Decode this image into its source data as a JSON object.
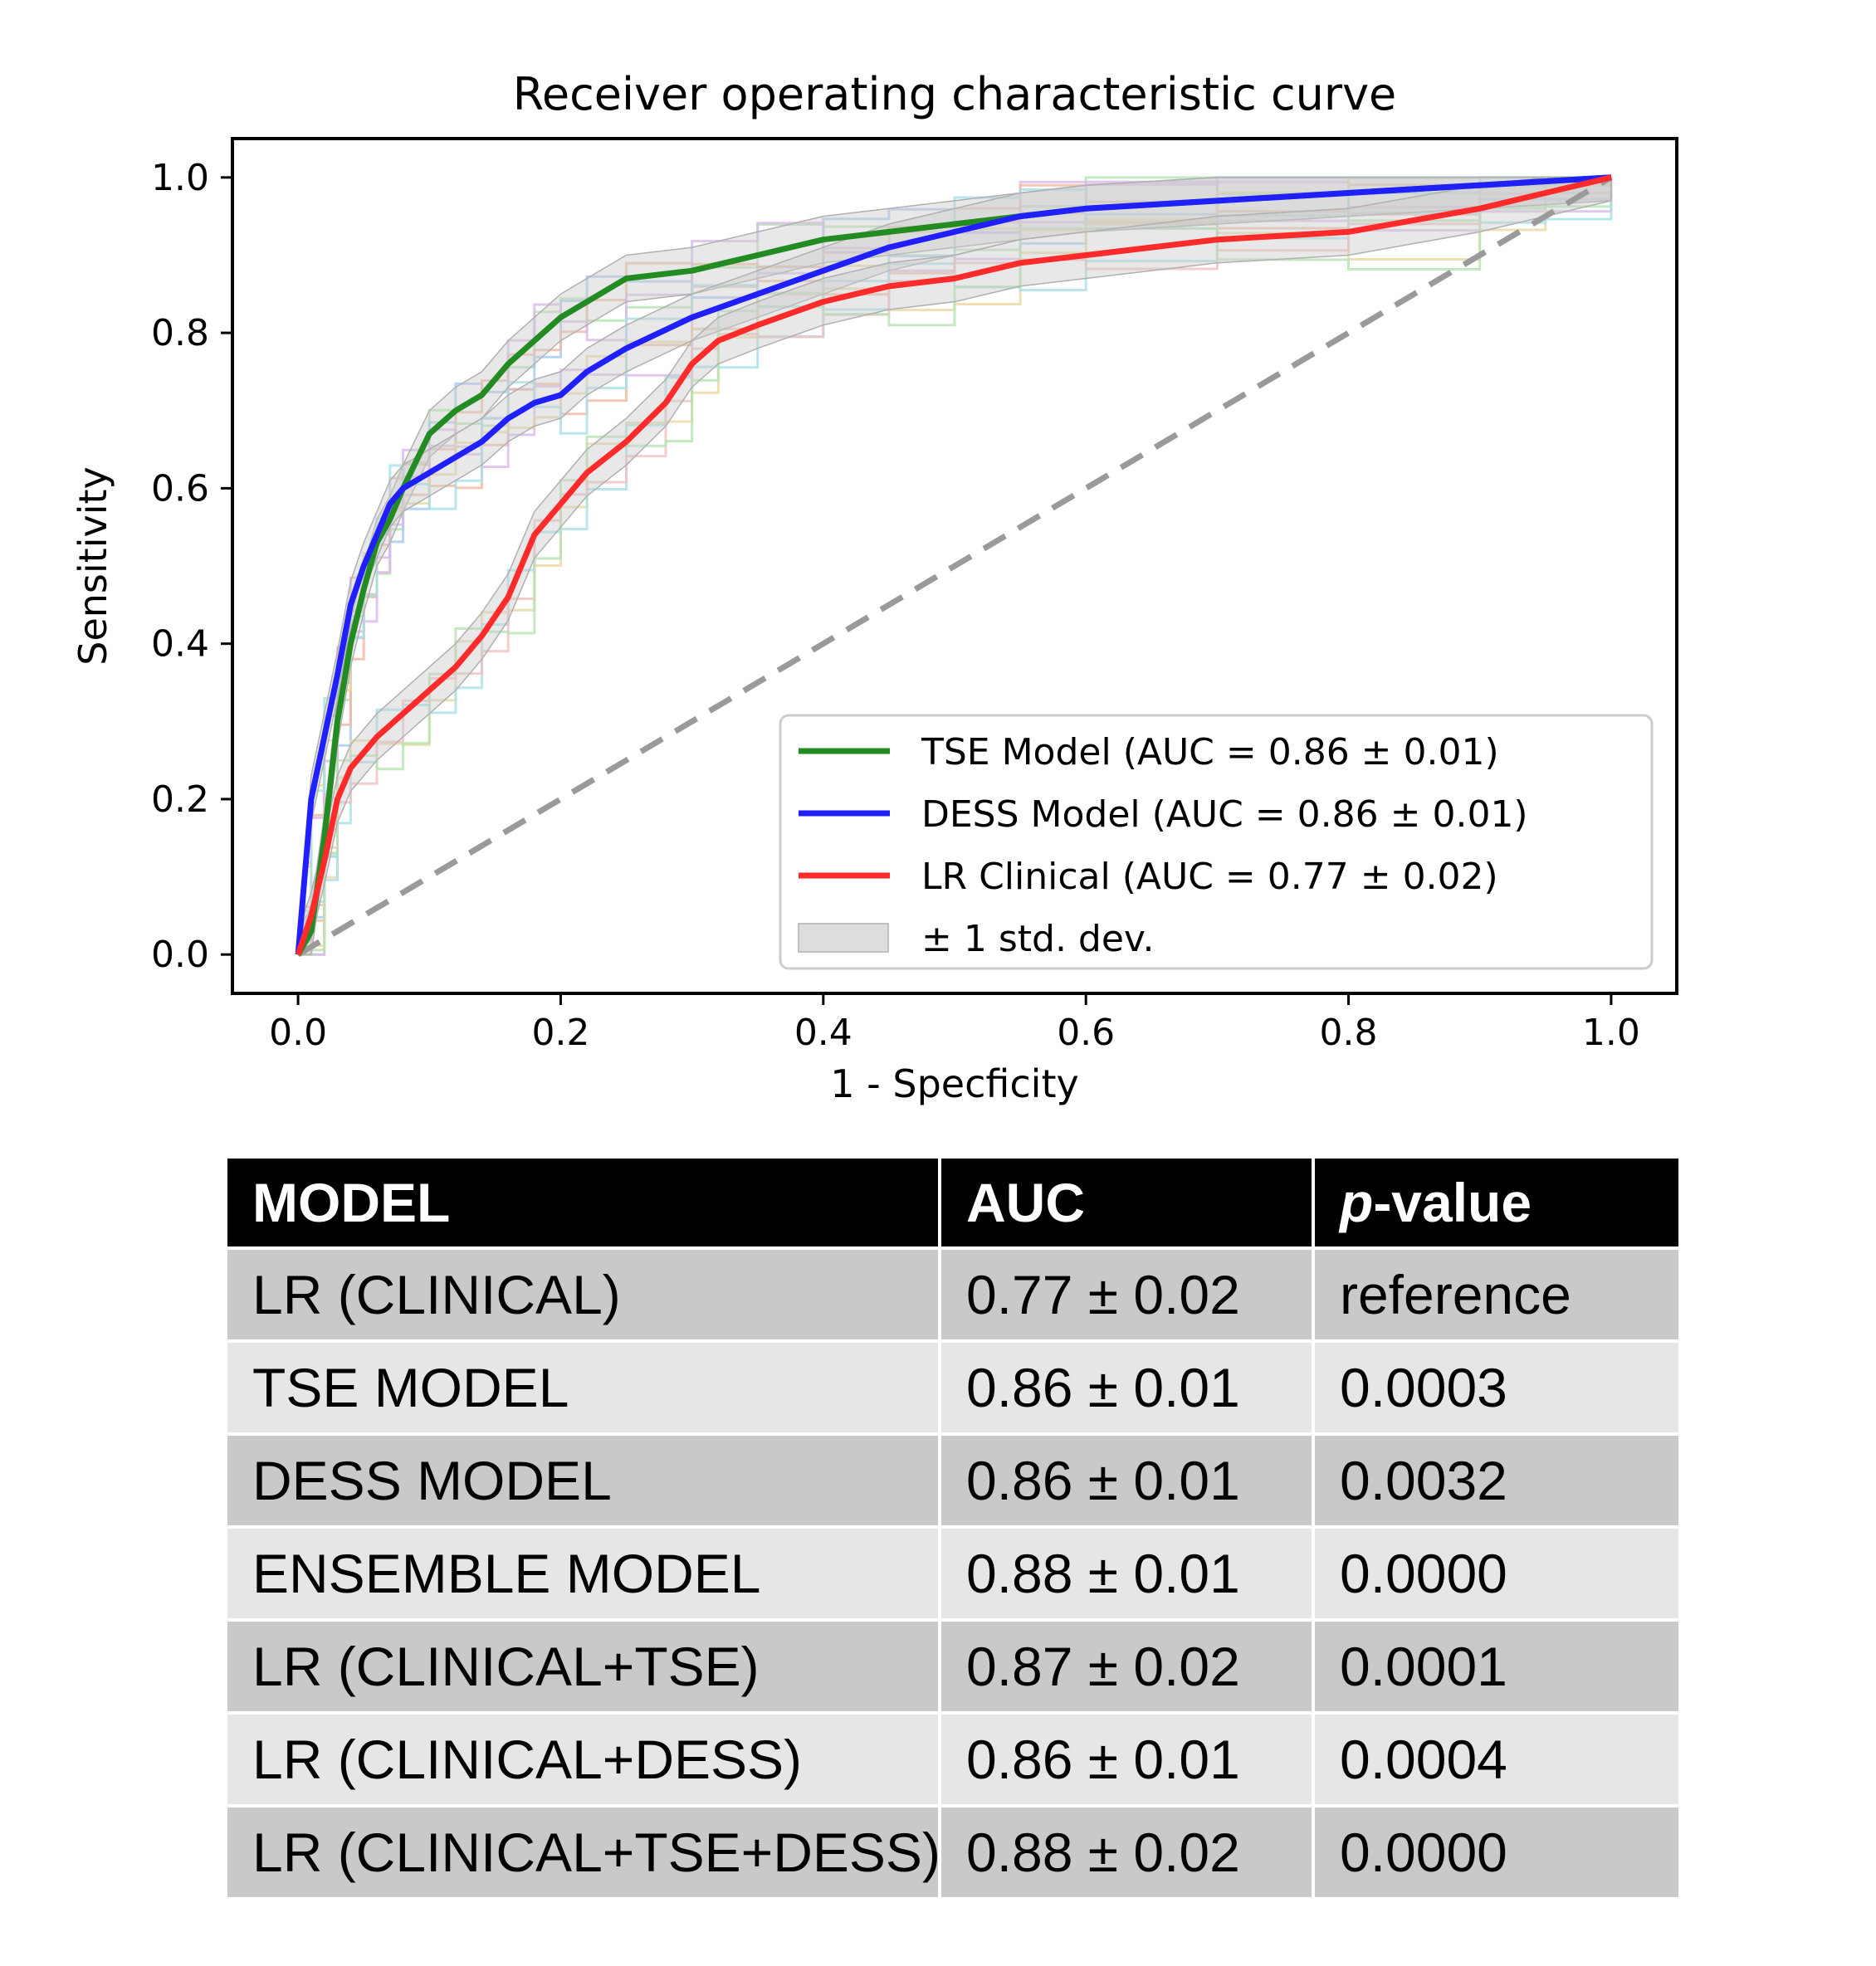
{
  "chart_data": {
    "type": "line",
    "title": "Receiver operating characteristic curve",
    "xlabel": "1 - Specficity",
    "ylabel": "Sensitivity",
    "xlim": [
      -0.05,
      1.05
    ],
    "ylim": [
      -0.05,
      1.05
    ],
    "xticks": [
      "0.0",
      "0.2",
      "0.4",
      "0.6",
      "0.8",
      "1.0"
    ],
    "yticks": [
      "0.0",
      "0.2",
      "0.4",
      "0.6",
      "0.8",
      "1.0"
    ],
    "grid": false,
    "legend_position": "lower-right",
    "series": [
      {
        "name": "TSE Model (AUC = 0.86 ± 0.01)",
        "color": "#228b22",
        "x": [
          0,
          0.01,
          0.02,
          0.03,
          0.04,
          0.05,
          0.06,
          0.07,
          0.08,
          0.1,
          0.12,
          0.14,
          0.16,
          0.18,
          0.2,
          0.22,
          0.25,
          0.3,
          0.35,
          0.4,
          0.45,
          0.5,
          0.55,
          0.6,
          0.7,
          0.8,
          0.9,
          1.0
        ],
        "y": [
          0,
          0.03,
          0.15,
          0.3,
          0.4,
          0.47,
          0.53,
          0.56,
          0.6,
          0.67,
          0.7,
          0.72,
          0.76,
          0.79,
          0.82,
          0.84,
          0.87,
          0.88,
          0.9,
          0.92,
          0.93,
          0.94,
          0.95,
          0.96,
          0.97,
          0.98,
          0.99,
          1.0
        ]
      },
      {
        "name": "DESS Model (AUC = 0.86 ± 0.01)",
        "color": "#1f1fff",
        "x": [
          0,
          0.005,
          0.01,
          0.02,
          0.03,
          0.04,
          0.05,
          0.06,
          0.07,
          0.08,
          0.1,
          0.12,
          0.14,
          0.16,
          0.18,
          0.2,
          0.22,
          0.25,
          0.3,
          0.35,
          0.4,
          0.45,
          0.5,
          0.55,
          0.6,
          0.7,
          0.8,
          0.9,
          1.0
        ],
        "y": [
          0,
          0.1,
          0.2,
          0.28,
          0.36,
          0.45,
          0.5,
          0.54,
          0.58,
          0.6,
          0.62,
          0.64,
          0.66,
          0.69,
          0.71,
          0.72,
          0.75,
          0.78,
          0.82,
          0.85,
          0.88,
          0.91,
          0.93,
          0.95,
          0.96,
          0.97,
          0.98,
          0.99,
          1.0
        ]
      },
      {
        "name": "LR Clinical (AUC = 0.77 ± 0.02)",
        "color": "#ff2a2a",
        "x": [
          0,
          0.01,
          0.02,
          0.03,
          0.04,
          0.06,
          0.08,
          0.1,
          0.12,
          0.14,
          0.16,
          0.18,
          0.2,
          0.22,
          0.25,
          0.28,
          0.3,
          0.32,
          0.35,
          0.4,
          0.45,
          0.5,
          0.55,
          0.6,
          0.7,
          0.8,
          0.9,
          0.95,
          1.0
        ],
        "y": [
          0,
          0.05,
          0.12,
          0.2,
          0.24,
          0.28,
          0.31,
          0.34,
          0.37,
          0.41,
          0.46,
          0.54,
          0.58,
          0.62,
          0.66,
          0.71,
          0.76,
          0.79,
          0.81,
          0.84,
          0.86,
          0.87,
          0.89,
          0.9,
          0.92,
          0.93,
          0.96,
          0.98,
          1.0
        ]
      }
    ],
    "reference_line": {
      "x": [
        0,
        1
      ],
      "y": [
        0,
        1
      ],
      "color": "#9a9a9a",
      "style": "dashed"
    },
    "legend_entries": [
      {
        "label": "TSE Model (AUC = 0.86 ± 0.01)",
        "color": "#228b22",
        "kind": "line"
      },
      {
        "label": "DESS Model (AUC = 0.86 ± 0.01)",
        "color": "#1f1fff",
        "kind": "line"
      },
      {
        "label": "LR Clinical (AUC = 0.77 ± 0.02)",
        "color": "#ff2a2a",
        "kind": "line"
      },
      {
        "label": "± 1 std. dev.",
        "color": "#dddddd",
        "kind": "band"
      }
    ],
    "std_band_half_width": 0.03,
    "fold_line_colors": [
      "#b5e3b0",
      "#a8c8f0",
      "#f0b8a0",
      "#d9b8e8",
      "#e8d8a0",
      "#a8e0e8",
      "#f0c0c0"
    ]
  },
  "table": {
    "headers": [
      "MODEL",
      "AUC",
      "p-value"
    ],
    "header_pvalue_italic": "p",
    "header_pvalue_rest": "-value",
    "rows": [
      [
        "LR (CLINICAL)",
        "0.77 ± 0.02",
        "reference"
      ],
      [
        "TSE MODEL",
        "0.86 ± 0.01",
        "0.0003"
      ],
      [
        "DESS MODEL",
        "0.86 ± 0.01",
        "0.0032"
      ],
      [
        "ENSEMBLE MODEL",
        "0.88 ± 0.01",
        "0.0000"
      ],
      [
        "LR (CLINICAL+TSE)",
        "0.87 ± 0.02",
        "0.0001"
      ],
      [
        "LR (CLINICAL+DESS)",
        "0.86 ± 0.01",
        "0.0004"
      ],
      [
        "LR (CLINICAL+TSE+DESS)",
        "0.88 ± 0.02",
        "0.0000"
      ]
    ]
  }
}
